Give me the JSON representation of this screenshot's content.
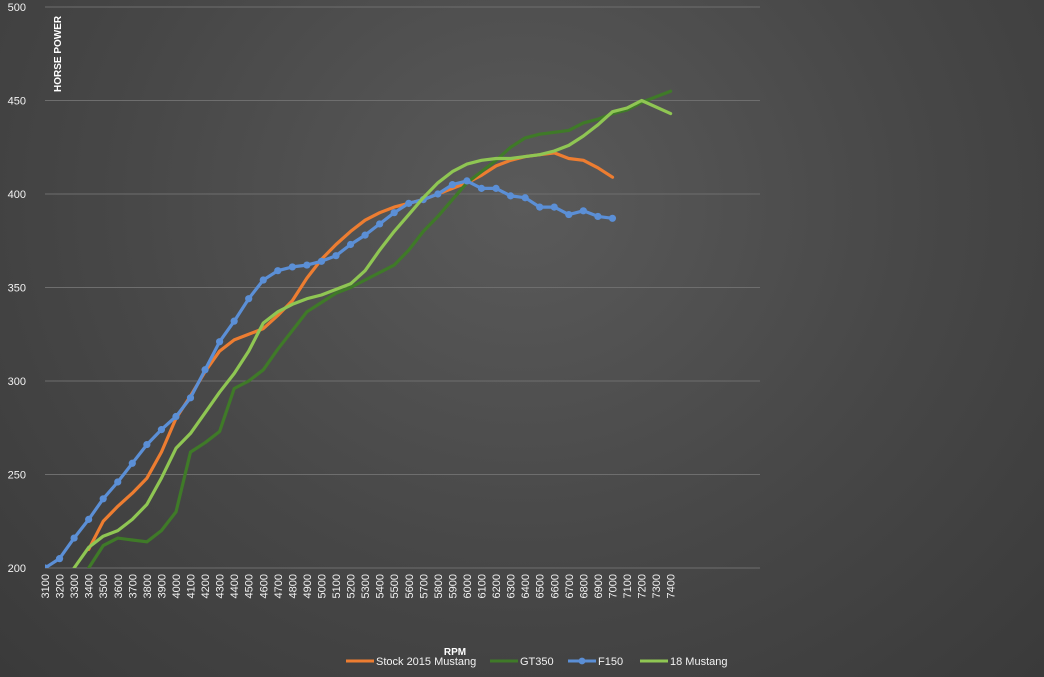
{
  "chart_data": {
    "type": "line",
    "xlabel": "RPM",
    "ylabel": "HORSE POWER",
    "ylim": [
      200,
      500
    ],
    "yticks": [
      200,
      250,
      300,
      350,
      400,
      450,
      500
    ],
    "grid": true,
    "legend_position": "bottom",
    "categories": [
      "3100",
      "3200",
      "3300",
      "3400",
      "3500",
      "3600",
      "3700",
      "3800",
      "3900",
      "4000",
      "4100",
      "4200",
      "4300",
      "4400",
      "4500",
      "4600",
      "4700",
      "4800",
      "4900",
      "5000",
      "5100",
      "5200",
      "5300",
      "5400",
      "5500",
      "5600",
      "5700",
      "5800",
      "5900",
      "6000",
      "6100",
      "6200",
      "6300",
      "6400",
      "6500",
      "6600",
      "6700",
      "6800",
      "6900",
      "7000",
      "7100",
      "7200",
      "7300",
      "7400"
    ],
    "series": [
      {
        "name": "Stock 2015 Mustang",
        "color": "#ed7d31",
        "markers": false,
        "values": [
          null,
          null,
          null,
          210,
          225,
          233,
          240,
          248,
          262,
          280,
          292,
          305,
          316,
          322,
          325,
          328,
          335,
          343,
          355,
          365,
          373,
          380,
          386,
          390,
          393,
          395,
          397,
          400,
          403,
          406,
          410,
          415,
          418,
          420,
          421,
          422,
          419,
          418,
          414,
          409,
          null,
          null,
          null,
          null
        ]
      },
      {
        "name": "GT350",
        "color": "#3f7a28",
        "markers": false,
        "values": [
          null,
          null,
          null,
          200,
          212,
          216,
          215,
          214,
          220,
          230,
          262,
          267,
          273,
          296,
          300,
          306,
          317,
          327,
          337,
          342,
          347,
          350,
          354,
          358,
          362,
          370,
          380,
          388,
          397,
          406,
          412,
          418,
          425,
          430,
          432,
          433,
          434,
          438,
          440,
          443,
          445,
          449,
          452,
          455
        ]
      },
      {
        "name": "F150",
        "color": "#5b8fd6",
        "markers": true,
        "values": [
          200,
          205,
          216,
          226,
          237,
          246,
          256,
          266,
          274,
          281,
          291,
          306,
          321,
          332,
          344,
          354,
          359,
          361,
          362,
          364,
          367,
          373,
          378,
          384,
          390,
          395,
          397,
          400,
          405,
          407,
          403,
          403,
          399,
          398,
          393,
          393,
          389,
          391,
          388,
          387,
          null,
          null,
          null,
          null
        ]
      },
      {
        "name": "18 Mustang",
        "color": "#8fc653",
        "markers": false,
        "values": [
          null,
          null,
          200,
          211,
          217,
          220,
          226,
          234,
          248,
          264,
          272,
          283,
          294,
          304,
          316,
          331,
          337,
          341,
          344,
          346,
          349,
          352,
          359,
          370,
          380,
          389,
          398,
          406,
          412,
          416,
          418,
          419,
          419,
          420,
          421,
          423,
          426,
          431,
          437,
          444,
          446,
          450,
          null,
          443
        ]
      }
    ]
  }
}
